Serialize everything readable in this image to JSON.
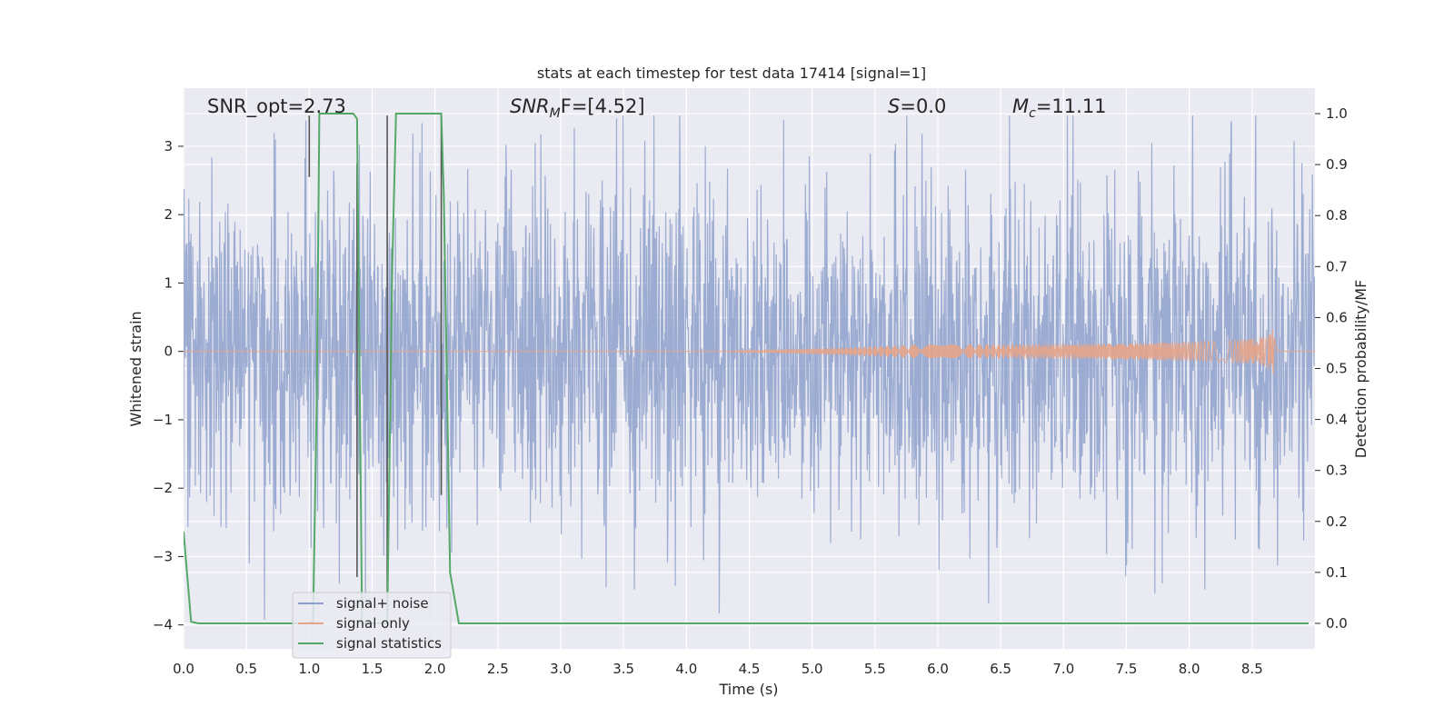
{
  "chart_data": {
    "type": "line",
    "title": "stats at each timestep for test data 17414 [signal=1]",
    "xlabel": "Time (s)",
    "ylabel_left": "Whitened strain",
    "ylabel_right": "Detection probability/MF",
    "xlim": [
      0.0,
      9.0
    ],
    "ylim_left": [
      -4.35,
      3.85
    ],
    "ylim_right": [
      -0.05,
      1.05
    ],
    "x_ticks": [
      "0.0",
      "0.5",
      "1.0",
      "1.5",
      "2.0",
      "2.5",
      "3.0",
      "3.5",
      "4.0",
      "4.5",
      "5.0",
      "5.5",
      "6.0",
      "6.5",
      "7.0",
      "7.5",
      "8.0",
      "8.5"
    ],
    "y_left_ticks": [
      "3",
      "2",
      "1",
      "0",
      "−1",
      "−2",
      "−3",
      "−4"
    ],
    "y_right_ticks": [
      "1.0",
      "0.9",
      "0.8",
      "0.7",
      "0.6",
      "0.5",
      "0.4",
      "0.3",
      "0.2",
      "0.1",
      "0.0"
    ],
    "grid": true,
    "legend_position": "lower-left",
    "colors": {
      "background": "#eaeaf2",
      "grid": "#ffffff",
      "noise": "#8da0cb",
      "signal": "#e5a48a",
      "stats": "#55a868",
      "vlines": "#555555"
    },
    "annotations": {
      "snr_opt": "SNR_opt=2.73",
      "snr_mf_base": "SNR",
      "snr_mf_sub": "M",
      "snr_mf_rest": "F=[4.52]",
      "s_main": "S",
      "s_rest": "=0.0",
      "mc_main": "M",
      "mc_sub": "c",
      "mc_rest": "=11.11"
    },
    "series": [
      {
        "name": "signal+ noise",
        "axis": "left",
        "description_values": "dense white-noise strain, amplitude envelope approx ±2 with peaks to ±3.4",
        "amplitude_envelope": 2.0
      },
      {
        "name": "signal only",
        "axis": "left",
        "chirp_start": 4.3,
        "chirp_peak_time": 8.68,
        "chirp_peak_amplitude": 0.5
      },
      {
        "name": "signal statistics",
        "axis": "right",
        "x": [
          0.0,
          0.06,
          0.12,
          0.99,
          1.03,
          1.06,
          1.08,
          1.35,
          1.38,
          1.42,
          1.62,
          1.66,
          1.69,
          2.05,
          2.07,
          2.12,
          2.19,
          8.95
        ],
        "y": [
          0.18,
          0.003,
          0.0,
          0.0,
          0.003,
          0.45,
          1.0,
          1.0,
          0.99,
          0.0,
          0.0,
          0.7,
          1.0,
          1.0,
          0.84,
          0.1,
          0.0,
          0.0
        ]
      }
    ],
    "vertical_lines": [
      {
        "x": 1.0,
        "y_top": 3.45,
        "y_bottom": 2.55
      },
      {
        "x": 1.38,
        "y_top": 2.75,
        "y_bottom": -3.3
      },
      {
        "x": 1.62,
        "y_top": 3.45,
        "y_bottom": -3.8
      },
      {
        "x": 2.05,
        "y_top": 3.45,
        "y_bottom": -2.1
      }
    ]
  }
}
